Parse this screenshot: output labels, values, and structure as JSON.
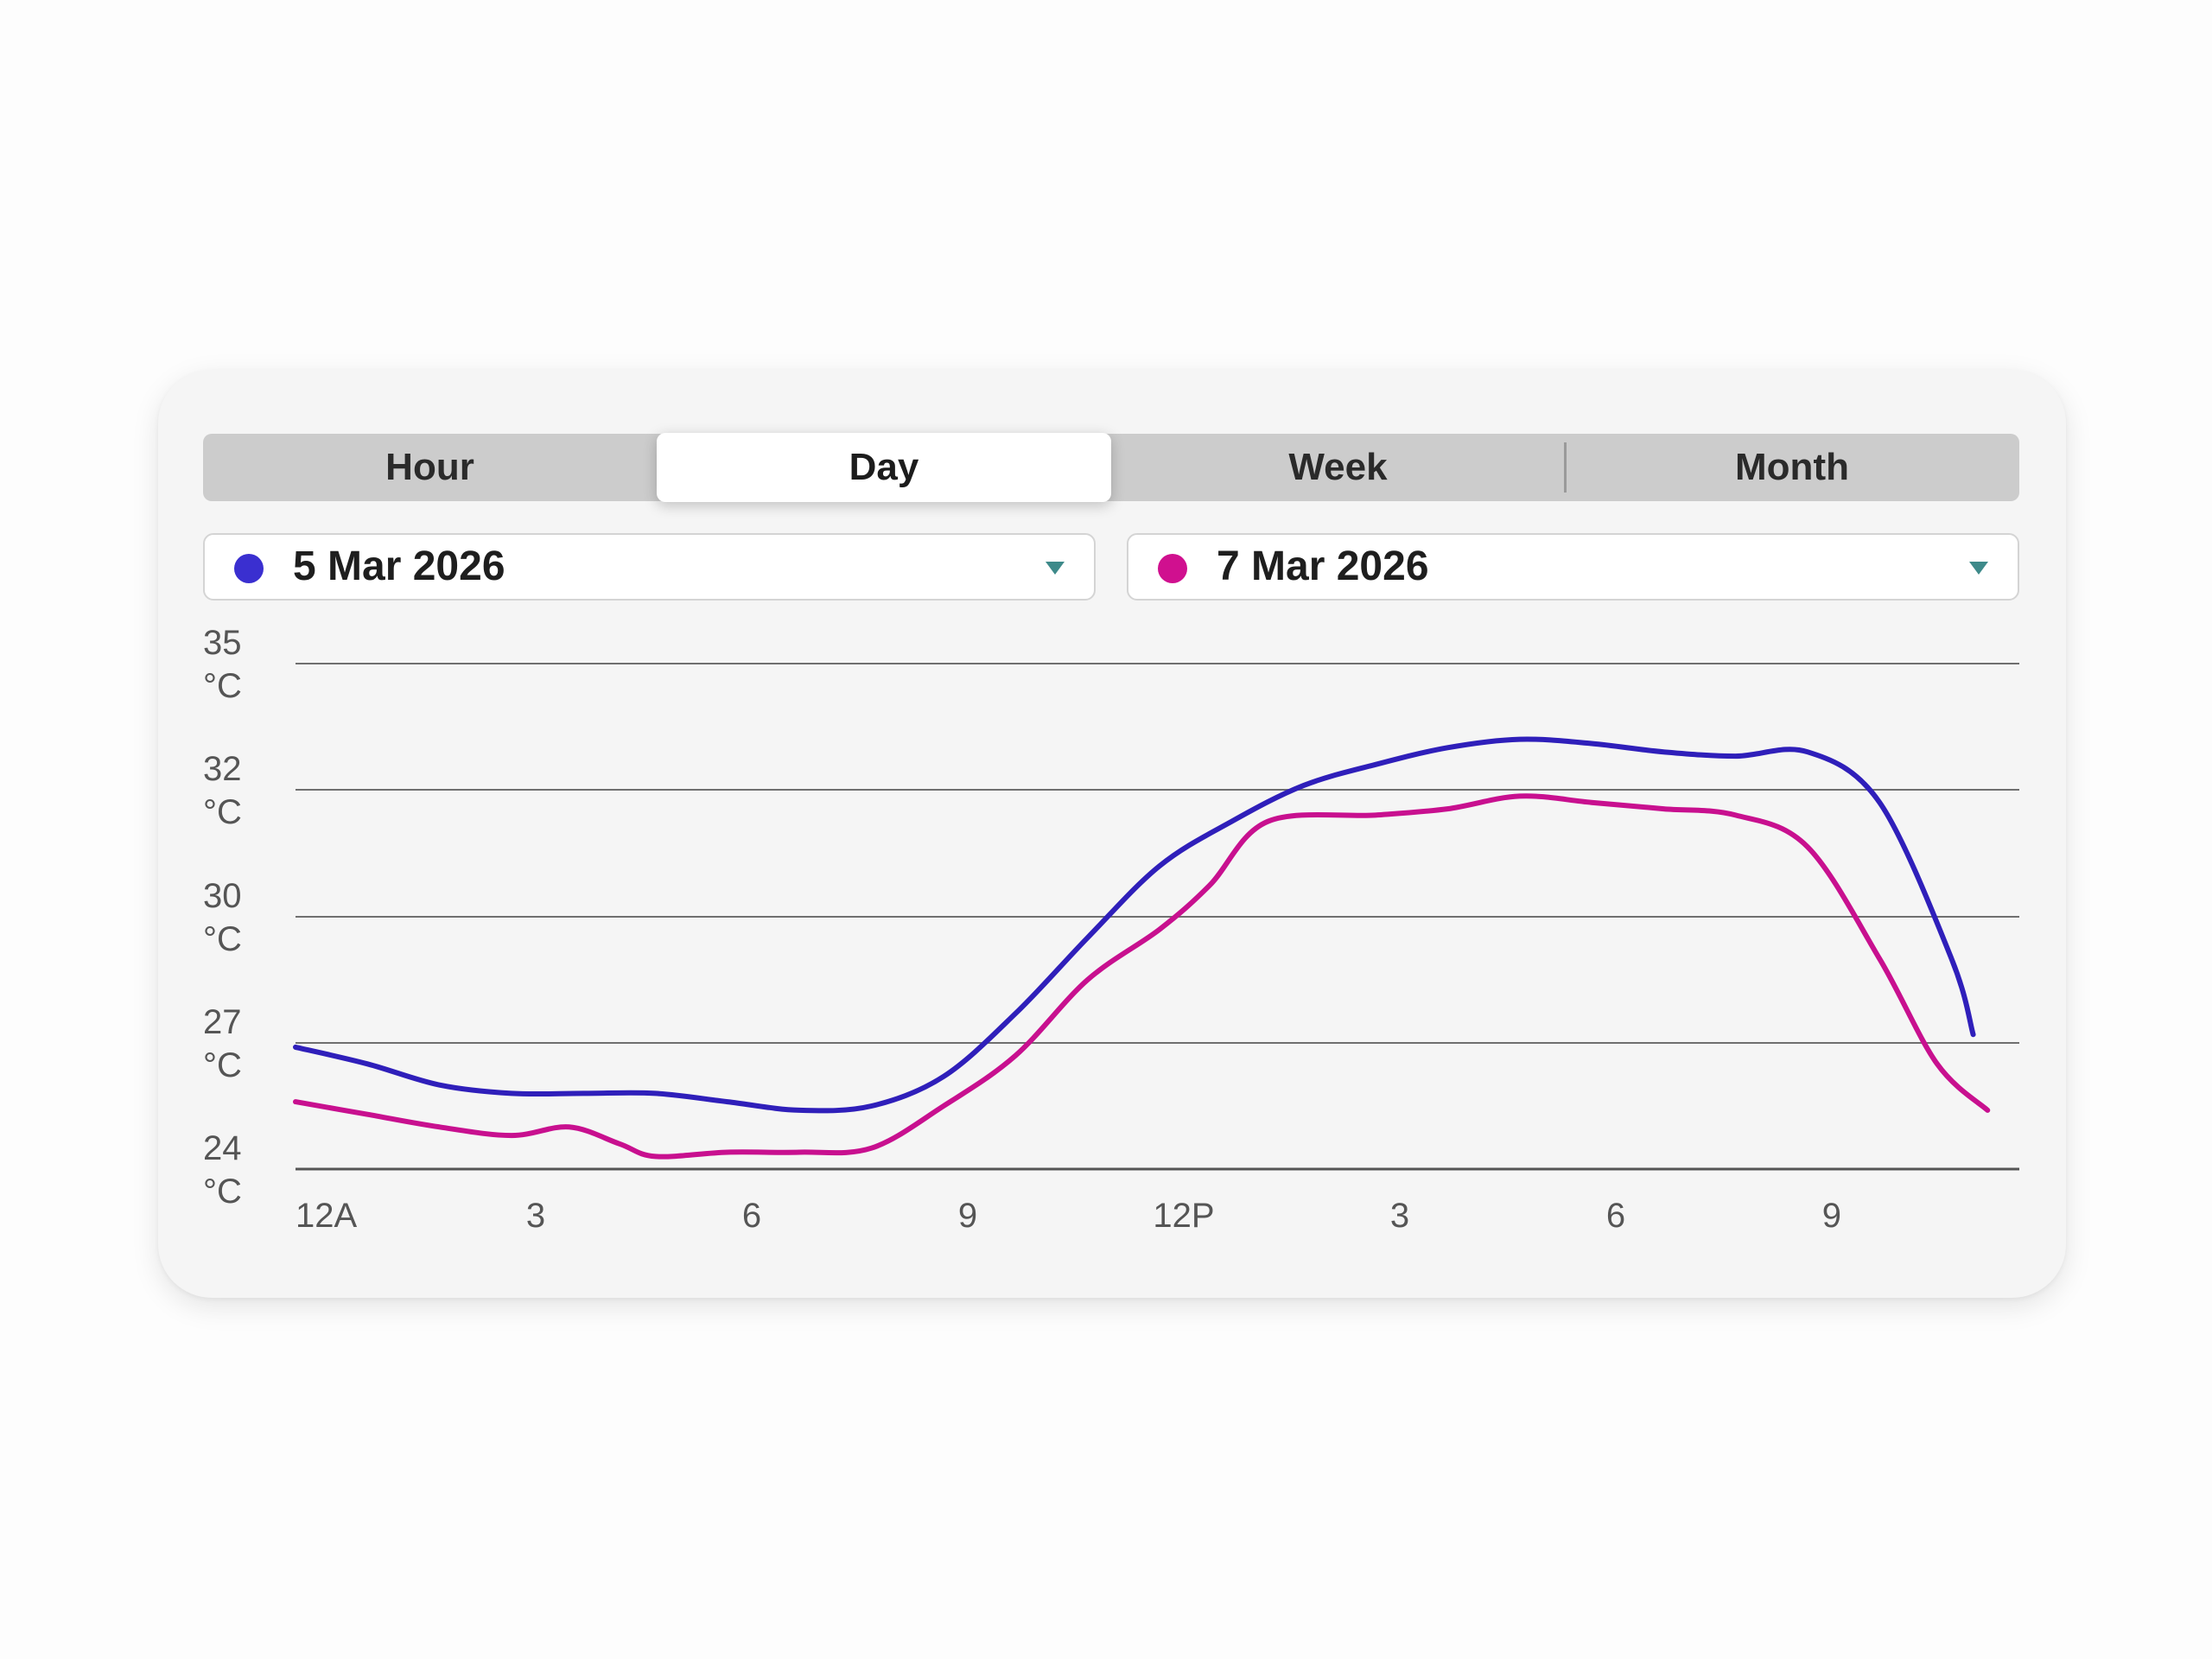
{
  "tabs": [
    {
      "label": "Hour",
      "active": false
    },
    {
      "label": "Day",
      "active": true
    },
    {
      "label": "Week",
      "active": false
    },
    {
      "label": "Month",
      "active": false
    }
  ],
  "date_selectors": [
    {
      "label": "5 Mar 2026",
      "color": "#3a2fd0"
    },
    {
      "label": "7 Mar 2026",
      "color": "#d0108f"
    }
  ],
  "chart_data": {
    "type": "line",
    "y_ticks": [
      {
        "value": 35,
        "unit": "°C"
      },
      {
        "value": 32,
        "unit": "°C"
      },
      {
        "value": 30,
        "unit": "°C"
      },
      {
        "value": 27,
        "unit": "°C"
      },
      {
        "value": 24,
        "unit": "°C"
      }
    ],
    "x_tick_labels": [
      "12A",
      "3",
      "6",
      "9",
      "12P",
      "3",
      "6",
      "9"
    ],
    "x_tick_hours": [
      0,
      3,
      6,
      9,
      12,
      15,
      18,
      21
    ],
    "x_range_hours": [
      0,
      24
    ],
    "grid": true,
    "series": [
      {
        "name": "5 Mar 2026",
        "color": "#2f1fba",
        "points": [
          [
            0,
            26.9
          ],
          [
            1,
            26.5
          ],
          [
            2,
            26.0
          ],
          [
            3,
            25.8
          ],
          [
            4,
            25.8
          ],
          [
            5,
            25.8
          ],
          [
            6,
            25.6
          ],
          [
            7,
            25.4
          ],
          [
            8,
            25.5
          ],
          [
            9,
            26.2
          ],
          [
            10,
            27.7
          ],
          [
            11,
            29.5
          ],
          [
            12,
            30.8
          ],
          [
            13,
            31.5
          ],
          [
            14,
            32.1
          ],
          [
            15,
            32.6
          ],
          [
            16,
            33.0
          ],
          [
            17,
            33.2
          ],
          [
            18,
            33.1
          ],
          [
            19,
            32.9
          ],
          [
            20,
            32.8
          ],
          [
            21,
            32.9
          ],
          [
            22,
            31.8
          ],
          [
            23,
            29.0
          ],
          [
            23.3,
            27.2
          ]
        ]
      },
      {
        "name": "7 Mar 2026",
        "color": "#c8108f",
        "points": [
          [
            0,
            25.6
          ],
          [
            1,
            25.3
          ],
          [
            2,
            25.0
          ],
          [
            3,
            24.8
          ],
          [
            3.8,
            25.0
          ],
          [
            4.5,
            24.6
          ],
          [
            5,
            24.3
          ],
          [
            6,
            24.4
          ],
          [
            7,
            24.4
          ],
          [
            8,
            24.5
          ],
          [
            9,
            25.5
          ],
          [
            10,
            26.7
          ],
          [
            11,
            28.5
          ],
          [
            12,
            29.7
          ],
          [
            12.7,
            30.5
          ],
          [
            13.5,
            31.5
          ],
          [
            15,
            31.6
          ],
          [
            16,
            31.7
          ],
          [
            17,
            31.9
          ],
          [
            18,
            31.8
          ],
          [
            19,
            31.7
          ],
          [
            20,
            31.6
          ],
          [
            21,
            31.1
          ],
          [
            22,
            29.0
          ],
          [
            22.8,
            26.5
          ],
          [
            23.5,
            25.4
          ]
        ]
      }
    ]
  }
}
